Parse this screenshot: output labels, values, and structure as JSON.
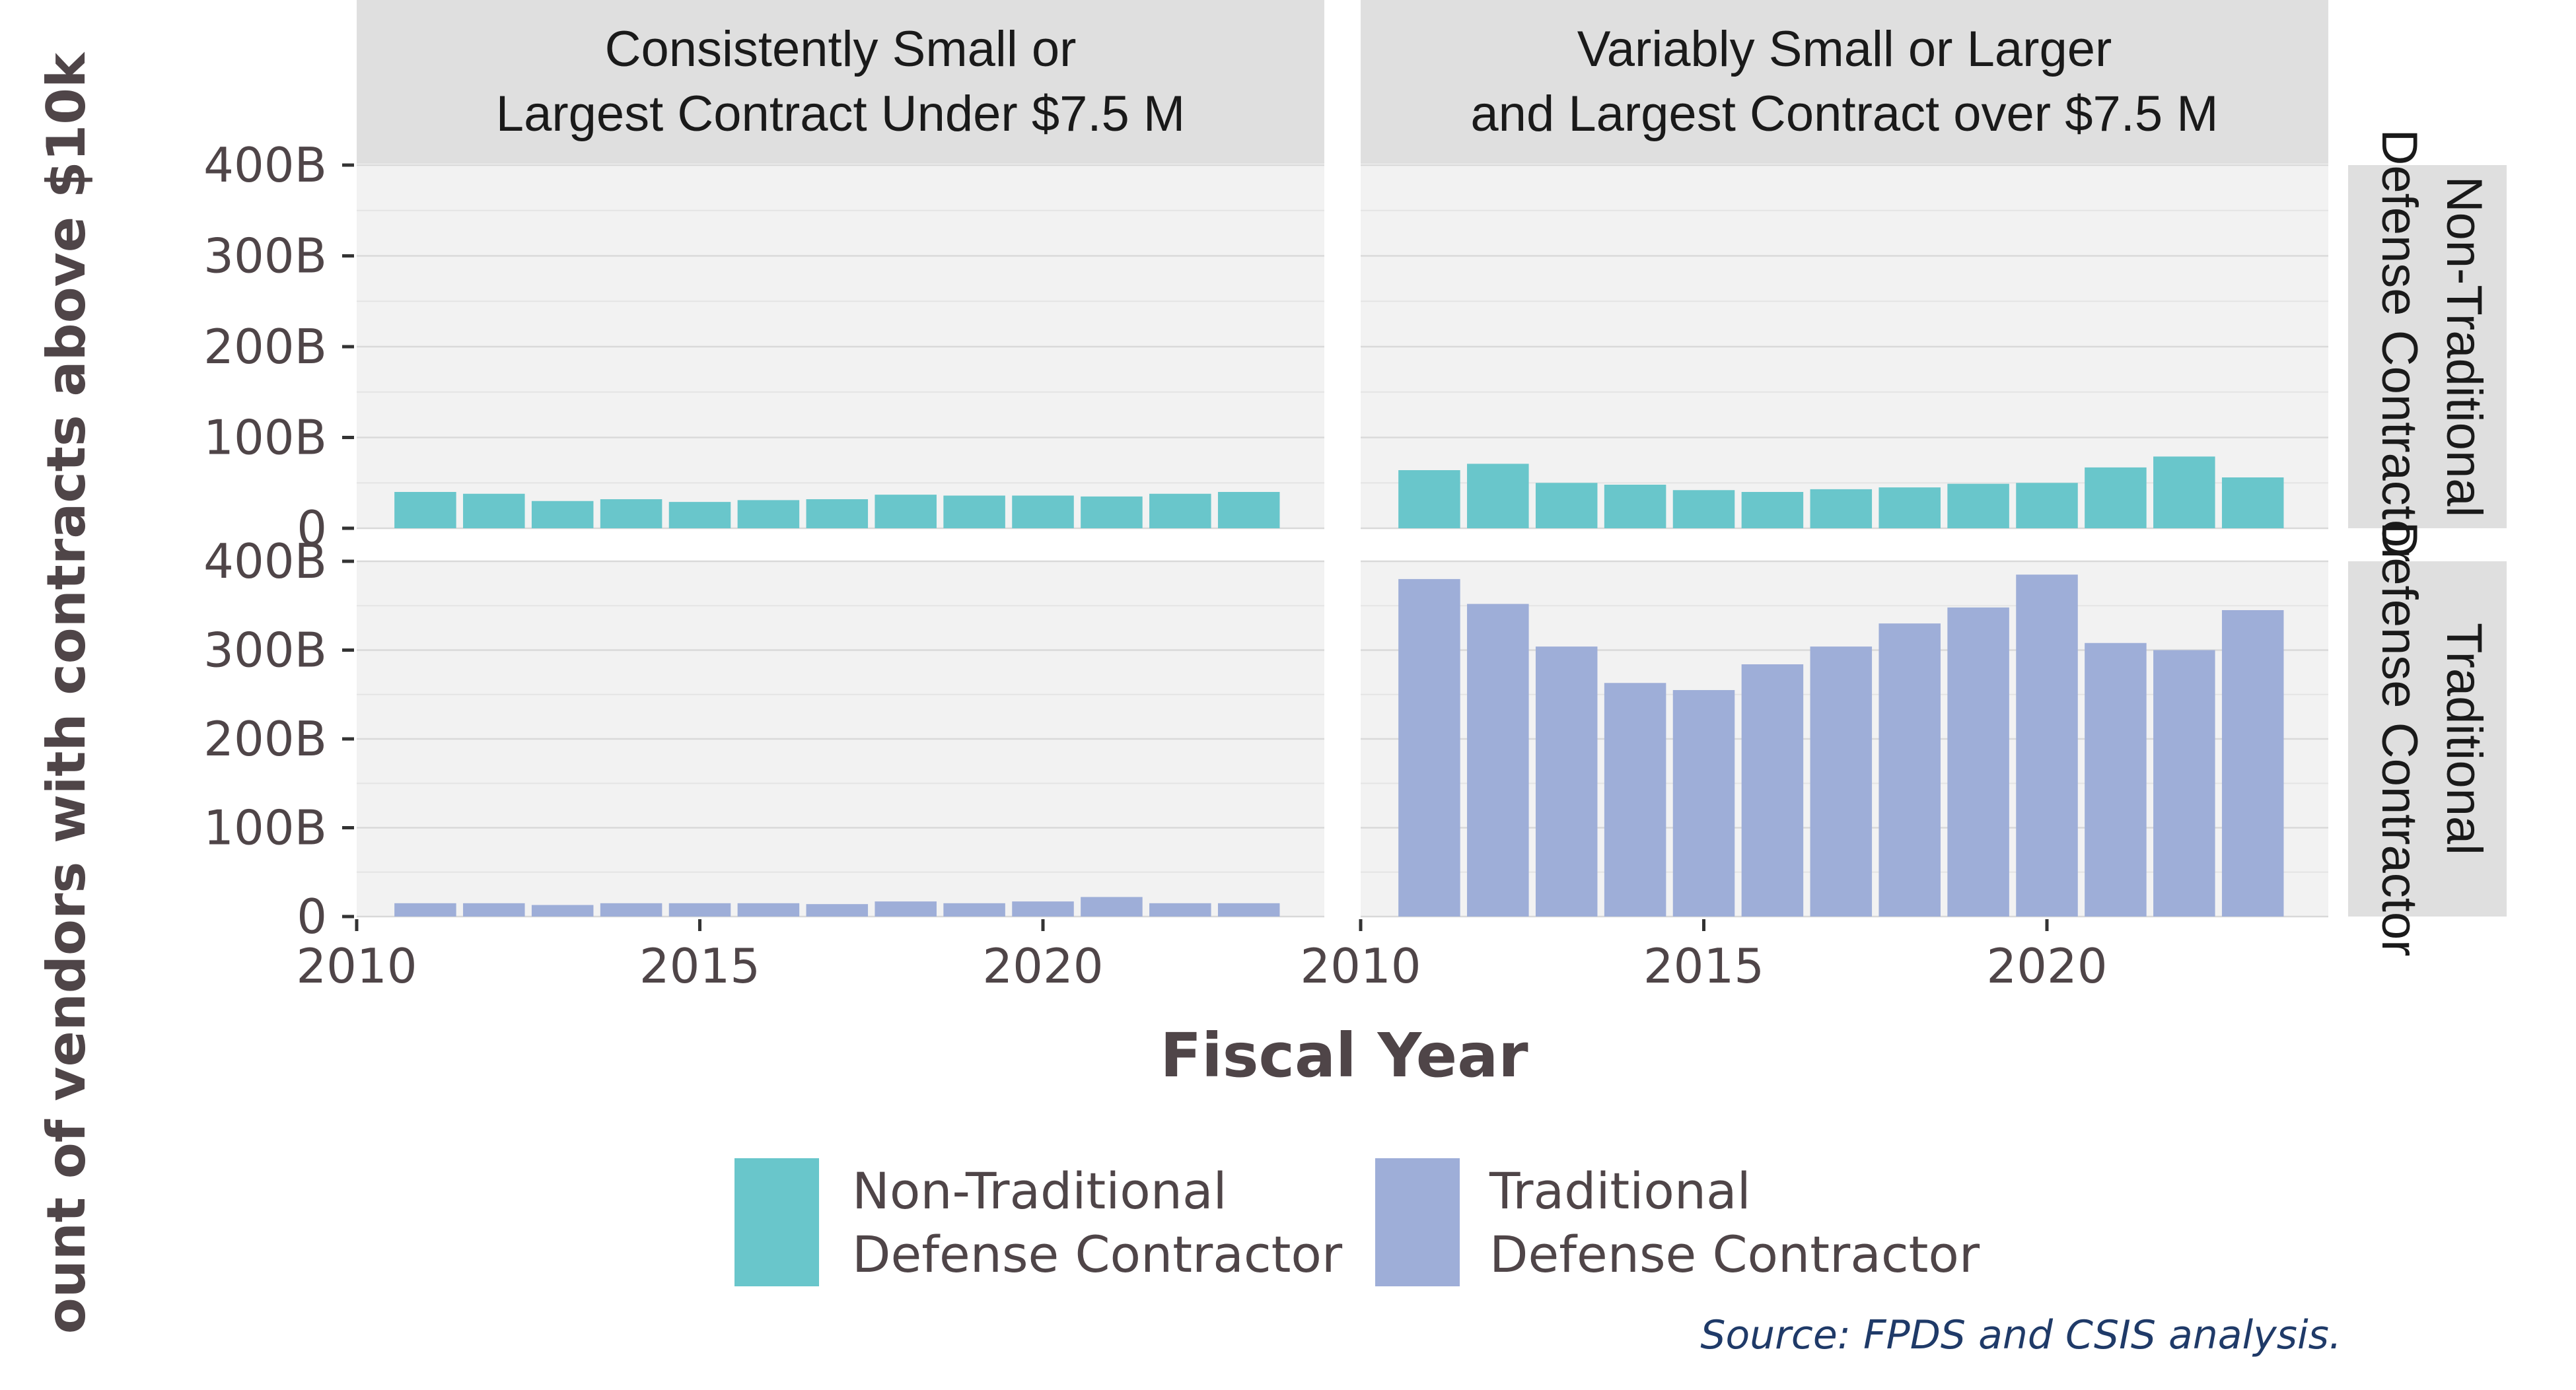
{
  "chart_data": {
    "type": "bar",
    "facet_cols": [
      "Consistently Small or\nLargest Contract Under $7.5 M",
      "Variably Small or Larger\nand Largest Contract over $7.5 M"
    ],
    "facet_rows": [
      "Non-Traditional\nDefense Contractor",
      "Traditional\nDefense Contractor"
    ],
    "x": [
      2011,
      2012,
      2013,
      2014,
      2015,
      2016,
      2017,
      2018,
      2019,
      2020,
      2021,
      2022,
      2023
    ],
    "xlim": [
      2010,
      2024.1
    ],
    "x_ticks": [
      2010,
      2015,
      2020
    ],
    "ylim": [
      0,
      400
    ],
    "y_ticks": [
      0,
      100,
      200,
      300,
      400
    ],
    "y_tick_labels": [
      "0",
      "100B",
      "200B",
      "300B",
      "400B"
    ],
    "xlabel": "Fiscal Year",
    "ylabel": "ount of vendors with contracts above $10k",
    "panels": [
      {
        "col": 0,
        "row": 0,
        "series": "Non-Traditional Defense Contractor",
        "values": [
          40,
          38,
          30,
          32,
          29,
          31,
          32,
          37,
          36,
          36,
          35,
          38,
          40
        ]
      },
      {
        "col": 1,
        "row": 0,
        "series": "Non-Traditional Defense Contractor",
        "values": [
          64,
          71,
          50,
          48,
          42,
          40,
          43,
          45,
          49,
          50,
          67,
          79,
          56
        ]
      },
      {
        "col": 0,
        "row": 1,
        "series": "Traditional Defense Contractor",
        "values": [
          15,
          15,
          13,
          15,
          15,
          15,
          14,
          17,
          15,
          17,
          22,
          15,
          15
        ]
      },
      {
        "col": 1,
        "row": 1,
        "series": "Traditional Defense Contractor",
        "values": [
          380,
          352,
          304,
          263,
          255,
          284,
          304,
          330,
          348,
          385,
          308,
          300,
          345
        ]
      }
    ],
    "legend": [
      {
        "label": "Non-Traditional\nDefense Contractor",
        "color": "#69c6cb"
      },
      {
        "label": "Traditional\nDefense Contractor",
        "color": "#9eaed8"
      }
    ],
    "legend_position": "bottom",
    "grid": true
  },
  "colors": {
    "panel_bg": "#f2f2f2",
    "strip_bg": "#dfdfdf",
    "grid": "#d9d9d9",
    "non_traditional": "#69c6cb",
    "traditional": "#9eaed8"
  },
  "source": "Source: FPDS and CSIS analysis."
}
